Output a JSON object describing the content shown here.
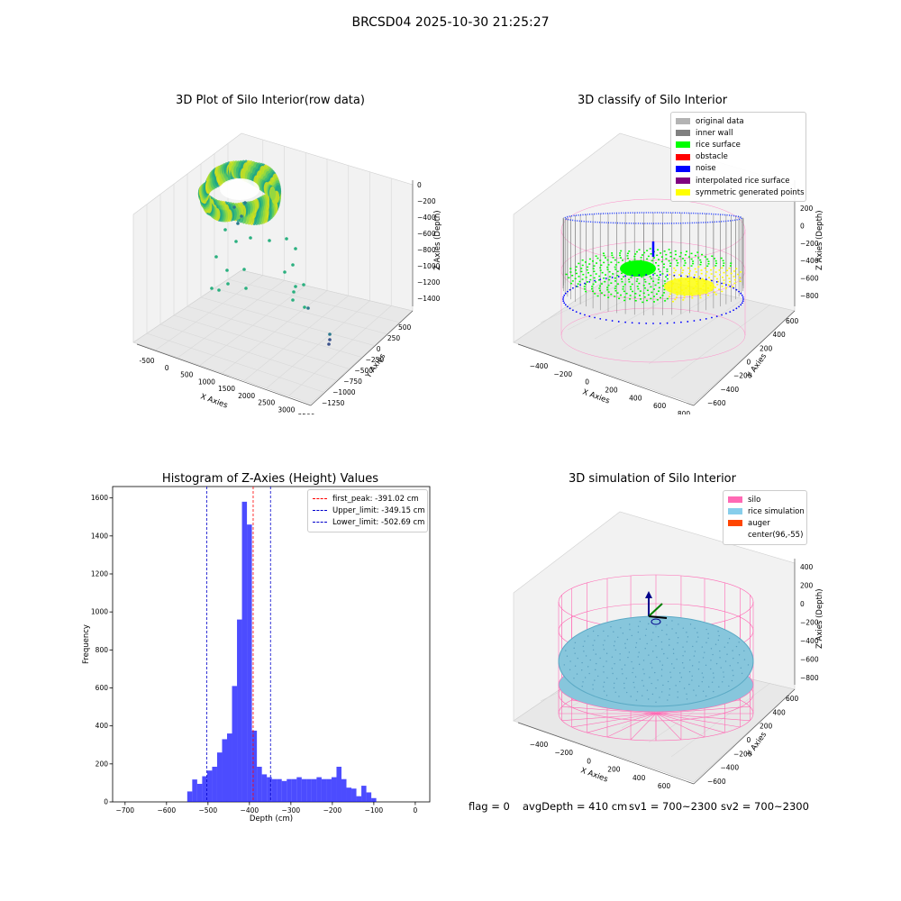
{
  "suptitle": "BRCSD04 2025-10-30 21:25:27",
  "panels": {
    "raw": {
      "title": "3D Plot of Silo Interior(row data)",
      "xlabel": "X Axies",
      "ylabel": "Y Axies",
      "zlabel": "Z Axies (Depth)",
      "xticks": [
        "-500",
        "0",
        "500",
        "1000",
        "1500",
        "2000",
        "2500",
        "3000",
        "3500"
      ],
      "yticks": [
        "500",
        "250",
        "0",
        "−250",
        "−500",
        "−750",
        "−1000",
        "−1250"
      ],
      "zticks": [
        "0",
        "−200",
        "−400",
        "−600",
        "−800",
        "−1000",
        "−1200",
        "−1400"
      ]
    },
    "classify": {
      "title": "3D classify of Silo Interior",
      "xlabel": "X Axies",
      "ylabel": "Y Axies",
      "zlabel": "Z Axies (Depth)",
      "xticks": [
        "−400",
        "−200",
        "0",
        "200",
        "400",
        "600",
        "800"
      ],
      "yticks": [
        "600",
        "400",
        "200",
        "0",
        "−200",
        "−400",
        "−600"
      ],
      "zticks": [
        "200",
        "0",
        "−200",
        "−400",
        "−600",
        "−800"
      ],
      "legend": [
        {
          "label": "original data",
          "color": "#b3b3b3"
        },
        {
          "label": "inner wall",
          "color": "#808080"
        },
        {
          "label": "rice surface",
          "color": "#00ff00"
        },
        {
          "label": "obstacle",
          "color": "#ff0000"
        },
        {
          "label": "noise",
          "color": "#0000ff"
        },
        {
          "label": "interpolated rice surface",
          "color": "#800080"
        },
        {
          "label": "symmetric generated points",
          "color": "#ffff00"
        }
      ]
    },
    "histogram": {
      "title": "Histogram of Z-Axies (Height) Values",
      "legend": [
        {
          "label": "first_peak: -391.02 cm",
          "color": "#ff0000"
        },
        {
          "label": "Upper_limit: -349.15 cm",
          "color": "#0000cc"
        },
        {
          "label": "Lower_limit: -502.69 cm",
          "color": "#0000cc"
        }
      ]
    },
    "simulation": {
      "title": "3D simulation of Silo Interior",
      "xlabel": "X Axies",
      "ylabel": "Y Axies",
      "zlabel": "Z Axies (Depth)",
      "xticks": [
        "−400",
        "−200",
        "0",
        "200",
        "400",
        "600"
      ],
      "yticks": [
        "600",
        "400",
        "200",
        "0",
        "−200",
        "−400",
        "−600"
      ],
      "zticks": [
        "400",
        "200",
        "0",
        "−200",
        "−400",
        "−600",
        "−800"
      ],
      "legend": [
        {
          "label": "silo",
          "color": "#ff69b4"
        },
        {
          "label": "rice simulation",
          "color": "#87ceeb"
        },
        {
          "label": "auger",
          "color": "#ff4500"
        },
        {
          "label": "center(96,-55)",
          "color": "#ffffff"
        }
      ]
    }
  },
  "status": {
    "flag": "flag = 0",
    "avg_depth": "avgDepth = 410 cm",
    "sv1": "sv1 = 700~2300",
    "sv2": "sv2 = 700~2300"
  },
  "chart_data": {
    "type": "bar",
    "title": "Histogram of Z-Axies (Height) Values",
    "xlabel": "Depth (cm)",
    "ylabel": "Frequency",
    "xlim": [
      -730,
      35
    ],
    "ylim": [
      0,
      1660
    ],
    "xticks": [
      -700,
      -600,
      -500,
      -400,
      -300,
      -200,
      -100,
      0
    ],
    "yticks": [
      0,
      200,
      400,
      600,
      800,
      1000,
      1200,
      1400,
      1600
    ],
    "bar_color": "#0000ff",
    "bin_width": 12,
    "bin_start": -550,
    "values": [
      55,
      118,
      95,
      135,
      165,
      185,
      260,
      330,
      360,
      610,
      960,
      1580,
      1460,
      375,
      185,
      145,
      130,
      120,
      120,
      110,
      120,
      120,
      130,
      120,
      120,
      120,
      130,
      120,
      120,
      130,
      185,
      120,
      75,
      70,
      30,
      85,
      50,
      20
    ],
    "vlines": [
      {
        "x": -391.02,
        "color": "#ff0000"
      },
      {
        "x": -349.15,
        "color": "#0000cc"
      },
      {
        "x": -502.69,
        "color": "#0000cc"
      }
    ]
  }
}
